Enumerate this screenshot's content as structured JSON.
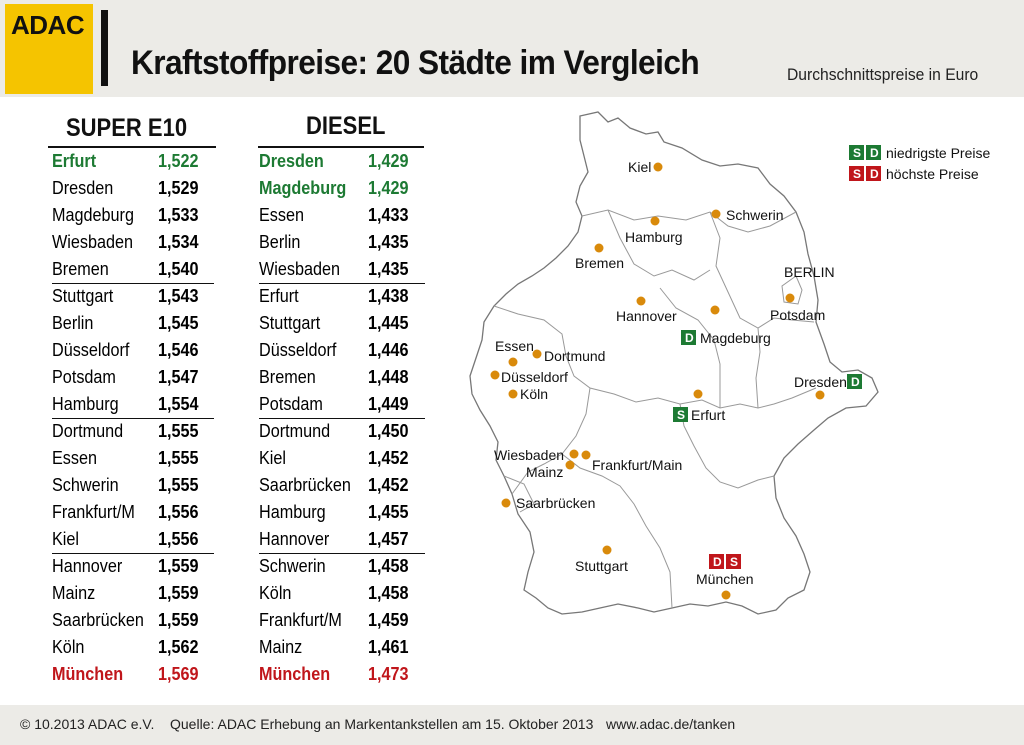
{
  "header": {
    "logo": "ADAC",
    "title": "Kraftstoffpreise: 20 Städte im Vergleich",
    "subtitle": "Durchschnittspreise in Euro"
  },
  "super": {
    "title": "SUPER E10",
    "rows": [
      {
        "city": "Erfurt",
        "price": "1,522"
      },
      {
        "city": "Dresden",
        "price": "1,529"
      },
      {
        "city": "Magdeburg",
        "price": "1,533"
      },
      {
        "city": "Wiesbaden",
        "price": "1,534"
      },
      {
        "city": "Bremen",
        "price": "1,540"
      },
      {
        "city": "Stuttgart",
        "price": "1,543"
      },
      {
        "city": "Berlin",
        "price": "1,545"
      },
      {
        "city": "Düsseldorf",
        "price": "1,546"
      },
      {
        "city": "Potsdam",
        "price": "1,547"
      },
      {
        "city": "Hamburg",
        "price": "1,554"
      },
      {
        "city": "Dortmund",
        "price": "1,555"
      },
      {
        "city": "Essen",
        "price": "1,555"
      },
      {
        "city": "Schwerin",
        "price": "1,555"
      },
      {
        "city": "Frankfurt/M",
        "price": "1,556"
      },
      {
        "city": "Kiel",
        "price": "1,556"
      },
      {
        "city": "Hannover",
        "price": "1,559"
      },
      {
        "city": "Mainz",
        "price": "1,559"
      },
      {
        "city": "Saarbrücken",
        "price": "1,559"
      },
      {
        "city": "Köln",
        "price": "1,562"
      },
      {
        "city": "München",
        "price": "1,569"
      }
    ]
  },
  "diesel": {
    "title": "DIESEL",
    "rows": [
      {
        "city": "Dresden",
        "price": "1,429"
      },
      {
        "city": "Magdeburg",
        "price": "1,429"
      },
      {
        "city": "Essen",
        "price": "1,433"
      },
      {
        "city": "Berlin",
        "price": "1,435"
      },
      {
        "city": "Wiesbaden",
        "price": "1,435"
      },
      {
        "city": "Erfurt",
        "price": "1,438"
      },
      {
        "city": "Stuttgart",
        "price": "1,445"
      },
      {
        "city": "Düsseldorf",
        "price": "1,446"
      },
      {
        "city": "Bremen",
        "price": "1,448"
      },
      {
        "city": "Potsdam",
        "price": "1,449"
      },
      {
        "city": "Dortmund",
        "price": "1,450"
      },
      {
        "city": "Kiel",
        "price": "1,452"
      },
      {
        "city": "Saarbrücken",
        "price": "1,452"
      },
      {
        "city": "Hamburg",
        "price": "1,455"
      },
      {
        "city": "Hannover",
        "price": "1,457"
      },
      {
        "city": "Schwerin",
        "price": "1,458"
      },
      {
        "city": "Köln",
        "price": "1,458"
      },
      {
        "city": "Frankfurt/M",
        "price": "1,459"
      },
      {
        "city": "Mainz",
        "price": "1,461"
      },
      {
        "city": "München",
        "price": "1,473"
      }
    ]
  },
  "map": {
    "cities": {
      "kiel": "Kiel",
      "hamburg": "Hamburg",
      "schwerin": "Schwerin",
      "bremen": "Bremen",
      "berlin": "BERLIN",
      "potsdam": "Potsdam",
      "hannover": "Hannover",
      "magdeburg": "Magdeburg",
      "essen": "Essen",
      "dortmund": "Dortmund",
      "duesseldorf": "Düsseldorf",
      "koeln": "Köln",
      "dresden": "Dresden",
      "erfurt": "Erfurt",
      "wiesbaden": "Wiesbaden",
      "mainz": "Mainz",
      "frankfurt": "Frankfurt/Main",
      "saarbruecken": "Saarbrücken",
      "stuttgart": "Stuttgart",
      "muenchen": "München"
    },
    "badge_s": "S",
    "badge_d": "D",
    "legend": {
      "lowest": "niedrigste Preise",
      "highest": "höchste Preise"
    },
    "colors": {
      "low": "#1d7a33",
      "high": "#c0161b",
      "dot": "#d98a0b"
    }
  },
  "footer": {
    "copyright": "© 10.2013  ADAC e.V.",
    "source": "Quelle: ADAC Erhebung an Markentankstellen am 15. Oktober 2013",
    "url": "www.adac.de/tanken"
  }
}
